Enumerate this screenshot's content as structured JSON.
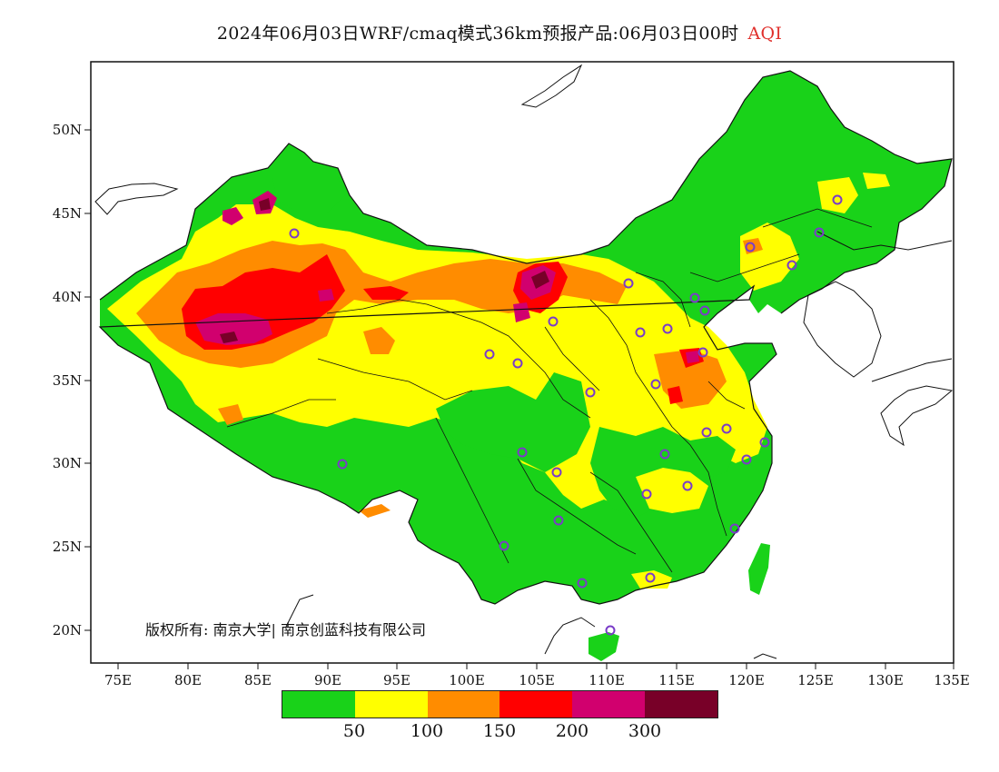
{
  "header": {
    "title": "2024年06月03日WRF/cmaq模式36km预报产品:06月03日00时",
    "variable": "AQI"
  },
  "map": {
    "lon_ticks": [
      "75E",
      "80E",
      "85E",
      "90E",
      "95E",
      "100E",
      "105E",
      "110E",
      "115E",
      "120E",
      "125E",
      "130E",
      "135E"
    ],
    "lat_ticks": [
      "20N",
      "25N",
      "30N",
      "35N",
      "40N",
      "45N",
      "50N"
    ],
    "copyright": "版权所有: 南京大学| 南京创蓝科技有限公司",
    "colors": {
      "green": "#19d219",
      "yellow": "#ffff00",
      "orange": "#ff8c00",
      "red": "#ff0000",
      "purple": "#d1006e",
      "maroon": "#780028",
      "marker": "#7a3cc8"
    }
  },
  "legend": {
    "colors": [
      "#19d219",
      "#ffff00",
      "#ff8c00",
      "#ff0000",
      "#d1006e",
      "#780028"
    ],
    "labels": [
      "50",
      "100",
      "150",
      "200",
      "300"
    ]
  }
}
